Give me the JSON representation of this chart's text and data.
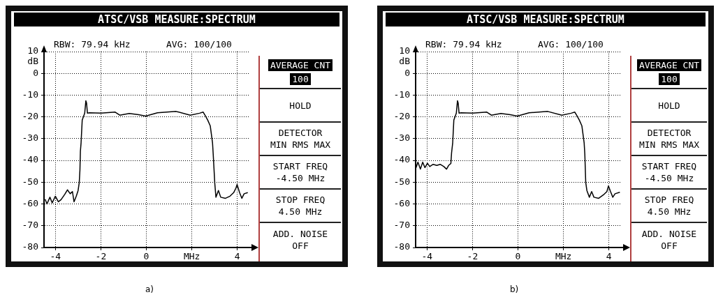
{
  "chart_data": [
    {
      "type": "line",
      "title": "ATSC/VSB MEASURE:SPECTRUM",
      "ylabel": "dB",
      "xlim": [
        -4.5,
        4.5
      ],
      "ylim": [
        -80,
        10
      ],
      "xticks": [
        -4,
        -2,
        0,
        {
          "value": 2,
          "label": "MHz"
        },
        4
      ],
      "yticks": [
        -80,
        -70,
        -60,
        -50,
        -40,
        -30,
        -20,
        -10,
        0,
        10
      ],
      "grid": true,
      "legend": false,
      "annotations": [
        "RBW: 79.94 kHz",
        "AVG: 100/100",
        "AVERAGE CNT",
        "100",
        "HOLD",
        "DETECTOR",
        "MIN RMS MAX",
        "START FREQ",
        "-4.50 MHz",
        "STOP FREQ",
        "4.50 MHz",
        "ADD. NOISE",
        "OFF",
        "a)"
      ],
      "series": [
        {
          "color": "#000000",
          "x": [
            -4.45,
            -4.37,
            -4.24,
            -4.14,
            -4.0,
            -3.87,
            -3.75,
            -3.59,
            -3.47,
            -3.35,
            -3.25,
            -3.18,
            -3.08,
            -3.0,
            -2.95,
            -2.92,
            -2.9,
            -2.87,
            -2.82,
            -2.71,
            -2.66,
            -2.63,
            -2.59,
            -2.51,
            -1.99,
            -1.37,
            -1.17,
            -0.75,
            -0.34,
            -0.03,
            0.49,
            1.31,
            1.93,
            2.34,
            2.5,
            2.6,
            2.7,
            2.81,
            2.91,
            2.94,
            3.01,
            3.06,
            3.17,
            3.27,
            3.48,
            3.68,
            3.84,
            3.94,
            3.99,
            4.1,
            4.2,
            4.3,
            4.46
          ],
          "values": [
            -57.8,
            -60,
            -56.9,
            -59.5,
            -56.4,
            -59,
            -58,
            -55.6,
            -53.5,
            -55.3,
            -54.3,
            -59,
            -56.4,
            -53.8,
            -50.1,
            -44.4,
            -35.8,
            -31.9,
            -21.5,
            -18.3,
            -12.6,
            -13.6,
            -18.3,
            -18.1,
            -18.3,
            -17.8,
            -19.2,
            -18.4,
            -19,
            -19.6,
            -18.1,
            -17.5,
            -19.2,
            -18.3,
            -17.8,
            -19.6,
            -21.5,
            -24.1,
            -31.9,
            -37.1,
            -50.6,
            -56.9,
            -53.8,
            -56.9,
            -57.4,
            -56.4,
            -54.8,
            -52.7,
            -51.1,
            -54.8,
            -57.4,
            -55.3,
            -54.8
          ]
        }
      ]
    },
    {
      "type": "line",
      "title": "ATSC/VSB MEASURE:SPECTRUM",
      "ylabel": "dB",
      "xlim": [
        -4.5,
        4.5
      ],
      "ylim": [
        -80,
        10
      ],
      "xticks": [
        -4,
        -2,
        0,
        {
          "value": 2,
          "label": "MHz"
        },
        4
      ],
      "yticks": [
        -80,
        -70,
        -60,
        -50,
        -40,
        -30,
        -20,
        -10,
        0,
        10
      ],
      "grid": true,
      "legend": false,
      "annotations": [
        "RBW: 79.94 kHz",
        "AVG: 100/100",
        "AVERAGE CNT",
        "100",
        "HOLD",
        "DETECTOR",
        "MIN RMS MAX",
        "START FREQ",
        "-4.50 MHz",
        "STOP FREQ",
        "4.50 MHz",
        "ADD. NOISE",
        "OFF",
        "b)"
      ],
      "series": [
        {
          "color": "#000000",
          "x": [
            -4.48,
            -4.4,
            -4.29,
            -4.19,
            -4.09,
            -3.98,
            -3.88,
            -3.73,
            -3.57,
            -3.42,
            -3.26,
            -3.14,
            -3.05,
            -2.95,
            -2.92,
            -2.87,
            -2.82,
            -2.71,
            -2.66,
            -2.63,
            -2.59,
            -2.51,
            -1.99,
            -1.37,
            -1.17,
            -0.75,
            -0.34,
            -0.03,
            0.49,
            1.31,
            1.93,
            2.34,
            2.5,
            2.6,
            2.7,
            2.81,
            2.91,
            2.94,
            2.98,
            3.03,
            3.14,
            3.24,
            3.34,
            3.55,
            3.76,
            3.91,
            3.98,
            4.07,
            4.17,
            4.27,
            4.48
          ],
          "values": [
            -43.3,
            -40.8,
            -44,
            -40.8,
            -43.3,
            -41.3,
            -42.8,
            -41.8,
            -42.3,
            -41.8,
            -42.8,
            -44,
            -42.3,
            -41.4,
            -36.6,
            -31.9,
            -21.5,
            -18.3,
            -12.6,
            -13.6,
            -18.3,
            -18.1,
            -18.3,
            -17.8,
            -19.2,
            -18.4,
            -19,
            -19.6,
            -18.1,
            -17.5,
            -19.2,
            -18.3,
            -17.8,
            -19.6,
            -21.5,
            -24.1,
            -31.9,
            -37.1,
            -50.1,
            -53.8,
            -56.9,
            -54.3,
            -56.9,
            -57.4,
            -55.8,
            -54.3,
            -51.7,
            -54.3,
            -56.9,
            -55.3,
            -54.6
          ]
        }
      ]
    }
  ]
}
